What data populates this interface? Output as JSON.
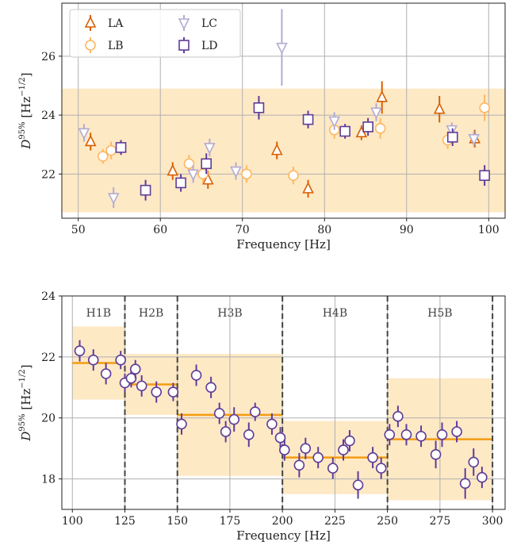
{
  "colors": {
    "LA": "#d95f02",
    "LB": "#fdb863",
    "LC": "#b2abd2",
    "LD": "#5e3c99",
    "band_fill": "#fee9c5",
    "level_line": "#f39c12",
    "grid": "#b0b0b0"
  },
  "chart_data": [
    {
      "type": "scatter",
      "xlabel": "Frequency [Hz]",
      "ylabel": "D^{95%} [Hz^{-1/2}]",
      "xlim": [
        48,
        102
      ],
      "ylim": [
        20.5,
        27.8
      ],
      "xticks": [
        50,
        60,
        70,
        80,
        90,
        100
      ],
      "yticks": [
        22,
        24,
        26
      ],
      "grid": true,
      "legend_position": "top-left",
      "band": {
        "ymin": 20.7,
        "ymax": 24.9
      },
      "series": [
        {
          "name": "LA",
          "marker": "triangle-up",
          "points": [
            {
              "x": 51.5,
              "y": 23.1,
              "err": 0.3
            },
            {
              "x": 55.2,
              "y": 22.9,
              "err": 0.25
            },
            {
              "x": 61.5,
              "y": 22.1,
              "err": 0.3
            },
            {
              "x": 65.8,
              "y": 21.8,
              "err": 0.3
            },
            {
              "x": 74.2,
              "y": 22.8,
              "err": 0.3
            },
            {
              "x": 78.0,
              "y": 21.5,
              "err": 0.3
            },
            {
              "x": 84.5,
              "y": 23.4,
              "err": 0.25
            },
            {
              "x": 87.0,
              "y": 24.6,
              "err": 0.55
            },
            {
              "x": 94.0,
              "y": 24.2,
              "err": 0.45
            },
            {
              "x": 98.3,
              "y": 23.2,
              "err": 0.3
            }
          ]
        },
        {
          "name": "LB",
          "marker": "circle",
          "points": [
            {
              "x": 53.0,
              "y": 22.6,
              "err": 0.25
            },
            {
              "x": 54.0,
              "y": 22.8,
              "err": 0.3
            },
            {
              "x": 63.5,
              "y": 22.35,
              "err": 0.3
            },
            {
              "x": 65.2,
              "y": 22.0,
              "err": 0.3
            },
            {
              "x": 70.5,
              "y": 22.0,
              "err": 0.3
            },
            {
              "x": 76.2,
              "y": 21.95,
              "err": 0.3
            },
            {
              "x": 81.2,
              "y": 23.5,
              "err": 0.3
            },
            {
              "x": 86.8,
              "y": 23.55,
              "err": 0.35
            },
            {
              "x": 95.0,
              "y": 23.15,
              "err": 0.3
            },
            {
              "x": 99.5,
              "y": 24.25,
              "err": 0.45
            }
          ]
        },
        {
          "name": "LC",
          "marker": "triangle-down",
          "points": [
            {
              "x": 50.7,
              "y": 23.4,
              "err": 0.3
            },
            {
              "x": 54.3,
              "y": 21.2,
              "err": 0.35
            },
            {
              "x": 64.0,
              "y": 22.0,
              "err": 0.3
            },
            {
              "x": 66.0,
              "y": 22.9,
              "err": 0.3
            },
            {
              "x": 69.2,
              "y": 22.1,
              "err": 0.3
            },
            {
              "x": 74.8,
              "y": 26.3,
              "err": 1.3
            },
            {
              "x": 81.2,
              "y": 23.8,
              "err": 0.3
            },
            {
              "x": 86.3,
              "y": 24.1,
              "err": 0.3
            },
            {
              "x": 95.5,
              "y": 23.5,
              "err": 0.25
            },
            {
              "x": 98.2,
              "y": 23.2,
              "err": 0.25
            }
          ]
        },
        {
          "name": "LD",
          "marker": "square",
          "points": [
            {
              "x": 55.2,
              "y": 22.9,
              "err": 0.25
            },
            {
              "x": 58.2,
              "y": 21.45,
              "err": 0.35
            },
            {
              "x": 62.5,
              "y": 21.7,
              "err": 0.3
            },
            {
              "x": 65.6,
              "y": 22.35,
              "err": 0.35
            },
            {
              "x": 72.0,
              "y": 24.25,
              "err": 0.4
            },
            {
              "x": 78.0,
              "y": 23.85,
              "err": 0.3
            },
            {
              "x": 82.5,
              "y": 23.45,
              "err": 0.25
            },
            {
              "x": 85.3,
              "y": 23.6,
              "err": 0.3
            },
            {
              "x": 95.6,
              "y": 23.25,
              "err": 0.3
            },
            {
              "x": 99.5,
              "y": 21.95,
              "err": 0.35
            }
          ]
        }
      ]
    },
    {
      "type": "scatter",
      "xlabel": "Frequency [Hz]",
      "ylabel": "D^{95%} [Hz^{-1/2}]",
      "xlim": [
        95,
        306
      ],
      "ylim": [
        17,
        24
      ],
      "xticks": [
        100,
        125,
        150,
        175,
        200,
        225,
        250,
        275,
        300
      ],
      "yticks": [
        18,
        20,
        22,
        24
      ],
      "grid": true,
      "boundaries": [
        125,
        150,
        200,
        250,
        300
      ],
      "bands": [
        {
          "label": "H1B",
          "x0": 100,
          "x1": 125,
          "ymin": 20.6,
          "ymax": 23.0,
          "level": 21.8
        },
        {
          "label": "H2B",
          "x0": 125,
          "x1": 150,
          "ymin": 20.1,
          "ymax": 22.1,
          "level": 21.1
        },
        {
          "label": "H3B",
          "x0": 150,
          "x1": 200,
          "ymin": 18.1,
          "ymax": 22.1,
          "level": 20.1
        },
        {
          "label": "H4B",
          "x0": 200,
          "x1": 250,
          "ymin": 17.5,
          "ymax": 19.9,
          "level": 18.7
        },
        {
          "label": "H5B",
          "x0": 250,
          "x1": 300,
          "ymin": 17.3,
          "ymax": 21.3,
          "level": 19.3
        }
      ],
      "series": [
        {
          "name": "",
          "marker": "circle",
          "points": [
            {
              "x": 103.5,
              "y": 22.2,
              "err": 0.35
            },
            {
              "x": 110,
              "y": 21.9,
              "err": 0.35
            },
            {
              "x": 116,
              "y": 21.45,
              "err": 0.35
            },
            {
              "x": 123,
              "y": 21.9,
              "err": 0.3
            },
            {
              "x": 125,
              "y": 21.15,
              "err": 0.3
            },
            {
              "x": 128,
              "y": 21.3,
              "err": 0.3
            },
            {
              "x": 130,
              "y": 21.6,
              "err": 0.3
            },
            {
              "x": 133,
              "y": 21.05,
              "err": 0.35
            },
            {
              "x": 140,
              "y": 20.85,
              "err": 0.35
            },
            {
              "x": 148,
              "y": 20.85,
              "err": 0.3
            },
            {
              "x": 152,
              "y": 19.8,
              "err": 0.35
            },
            {
              "x": 159,
              "y": 21.4,
              "err": 0.35
            },
            {
              "x": 166,
              "y": 21.0,
              "err": 0.35
            },
            {
              "x": 170,
              "y": 20.15,
              "err": 0.35
            },
            {
              "x": 173,
              "y": 19.55,
              "err": 0.35
            },
            {
              "x": 177,
              "y": 19.95,
              "err": 0.4
            },
            {
              "x": 184,
              "y": 19.45,
              "err": 0.4
            },
            {
              "x": 187,
              "y": 20.2,
              "err": 0.3
            },
            {
              "x": 195,
              "y": 19.8,
              "err": 0.35
            },
            {
              "x": 199,
              "y": 19.35,
              "err": 0.35
            },
            {
              "x": 201,
              "y": 18.95,
              "err": 0.35
            },
            {
              "x": 208,
              "y": 18.45,
              "err": 0.4
            },
            {
              "x": 211,
              "y": 19.0,
              "err": 0.35
            },
            {
              "x": 217,
              "y": 18.7,
              "err": 0.35
            },
            {
              "x": 224,
              "y": 18.35,
              "err": 0.35
            },
            {
              "x": 229,
              "y": 18.95,
              "err": 0.35
            },
            {
              "x": 232,
              "y": 19.25,
              "err": 0.35
            },
            {
              "x": 236,
              "y": 17.8,
              "err": 0.45
            },
            {
              "x": 243,
              "y": 18.7,
              "err": 0.35
            },
            {
              "x": 247,
              "y": 18.35,
              "err": 0.35
            },
            {
              "x": 251,
              "y": 19.45,
              "err": 0.35
            },
            {
              "x": 255,
              "y": 20.05,
              "err": 0.35
            },
            {
              "x": 259,
              "y": 19.45,
              "err": 0.35
            },
            {
              "x": 266,
              "y": 19.4,
              "err": 0.35
            },
            {
              "x": 273,
              "y": 18.8,
              "err": 0.45
            },
            {
              "x": 276,
              "y": 19.45,
              "err": 0.4
            },
            {
              "x": 283,
              "y": 19.55,
              "err": 0.35
            },
            {
              "x": 287,
              "y": 17.85,
              "err": 0.5
            },
            {
              "x": 291,
              "y": 18.55,
              "err": 0.45
            },
            {
              "x": 295,
              "y": 18.05,
              "err": 0.35
            }
          ]
        }
      ]
    }
  ]
}
